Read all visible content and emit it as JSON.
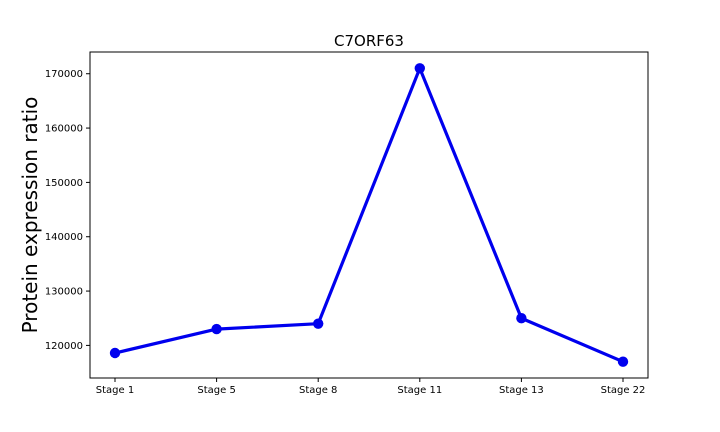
{
  "chart_data": {
    "type": "line",
    "title": "C7ORF63",
    "xlabel": "",
    "ylabel": "Protein expression ratio",
    "categories": [
      "Stage 1",
      "Stage 5",
      "Stage 8",
      "Stage 11",
      "Stage 13",
      "Stage 22"
    ],
    "series": [
      {
        "values": [
          118600,
          123000,
          124000,
          171000,
          125000,
          117000
        ],
        "color": "#0000ee"
      }
    ],
    "ylim": [
      114000,
      174000
    ],
    "yticks": [
      120000,
      130000,
      140000,
      150000,
      160000,
      170000
    ],
    "ytick_labels": [
      "120000",
      "130000",
      "140000",
      "150000",
      "160000",
      "170000"
    ],
    "grid": false,
    "legend": "none"
  }
}
